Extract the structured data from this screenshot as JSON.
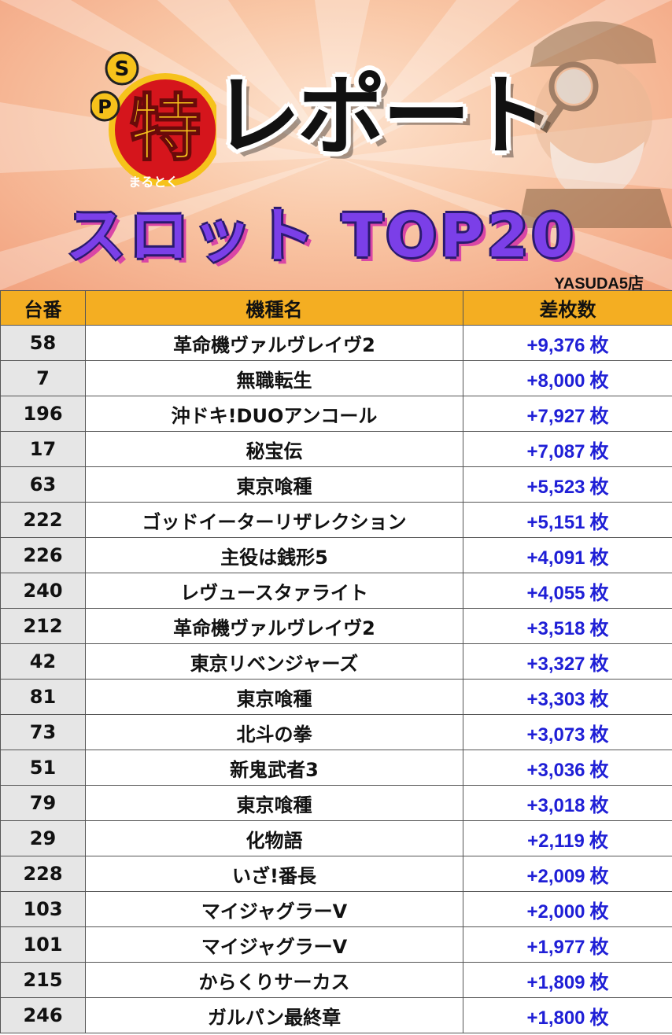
{
  "banner": {
    "badge_sp_top": "S",
    "badge_sp_left": "P",
    "badge_kanji": "特",
    "badge_kana": "まるとく",
    "title": "レポート",
    "subtitle": "スロット TOP20",
    "store": "YASUDA5店",
    "colors": {
      "header_bg": "#f4ae22",
      "accent_blue": "#1f1fd6",
      "subtitle_purple": "#7b3fe8"
    }
  },
  "table": {
    "headers": [
      "台番",
      "機種名",
      "差枚数"
    ],
    "unit": "枚",
    "rows": [
      {
        "no": "58",
        "name": "革命機ヴァルヴレイヴ2",
        "diff": "+9,376"
      },
      {
        "no": "7",
        "name": "無職転生",
        "diff": "+8,000"
      },
      {
        "no": "196",
        "name": "沖ドキ!DUOアンコール",
        "diff": "+7,927"
      },
      {
        "no": "17",
        "name": "秘宝伝",
        "diff": "+7,087"
      },
      {
        "no": "63",
        "name": "東京喰種",
        "diff": "+5,523"
      },
      {
        "no": "222",
        "name": "ゴッドイーターリザレクション",
        "diff": "+5,151"
      },
      {
        "no": "226",
        "name": "主役は銭形5",
        "diff": "+4,091"
      },
      {
        "no": "240",
        "name": "レヴュースタァライト",
        "diff": "+4,055"
      },
      {
        "no": "212",
        "name": "革命機ヴァルヴレイヴ2",
        "diff": "+3,518"
      },
      {
        "no": "42",
        "name": "東京リベンジャーズ",
        "diff": "+3,327"
      },
      {
        "no": "81",
        "name": "東京喰種",
        "diff": "+3,303"
      },
      {
        "no": "73",
        "name": "北斗の拳",
        "diff": "+3,073"
      },
      {
        "no": "51",
        "name": "新鬼武者3",
        "diff": "+3,036"
      },
      {
        "no": "79",
        "name": "東京喰種",
        "diff": "+3,018"
      },
      {
        "no": "29",
        "name": "化物語",
        "diff": "+2,119"
      },
      {
        "no": "228",
        "name": "いざ!番長",
        "diff": "+2,009"
      },
      {
        "no": "103",
        "name": "マイジャグラーV",
        "diff": "+2,000"
      },
      {
        "no": "101",
        "name": "マイジャグラーV",
        "diff": "+1,977"
      },
      {
        "no": "215",
        "name": "からくりサーカス",
        "diff": "+1,809"
      },
      {
        "no": "246",
        "name": "ガルパン最終章",
        "diff": "+1,800"
      }
    ]
  }
}
